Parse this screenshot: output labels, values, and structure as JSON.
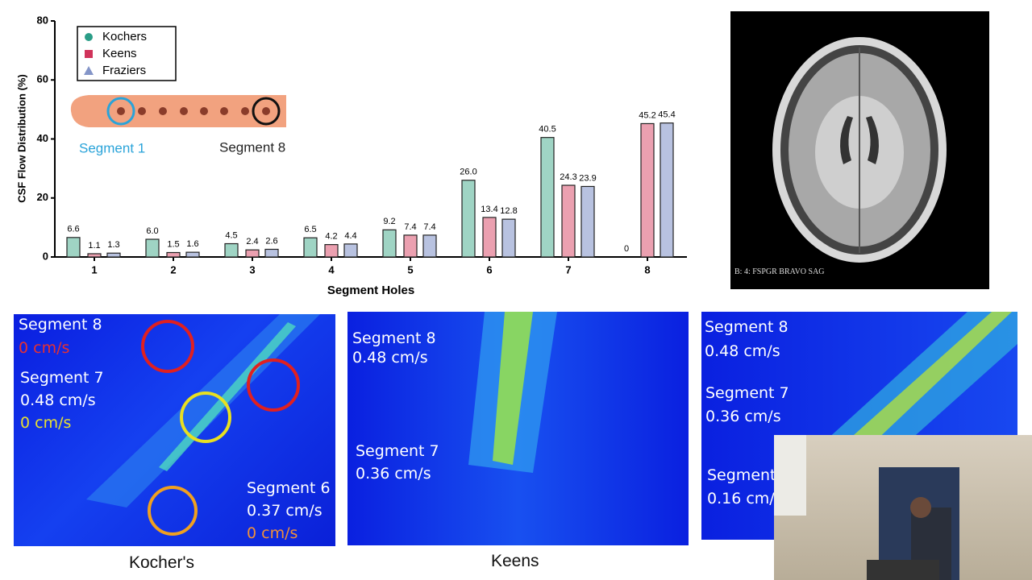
{
  "chart_data": {
    "type": "bar",
    "x_label": "Segment Holes",
    "y_label": "CSF Flow Distribution (%)",
    "categories": [
      "1",
      "2",
      "3",
      "4",
      "5",
      "6",
      "7",
      "8"
    ],
    "series": [
      {
        "name": "Kochers",
        "color": "#9fd4c4",
        "marker_color": "#2a9d87",
        "values": [
          6.6,
          6.0,
          4.5,
          6.5,
          9.2,
          26.0,
          40.5,
          0
        ],
        "value_labels": [
          "6.6",
          "6.0",
          "4.5",
          "6.5",
          "9.2",
          "26.0",
          "40.5",
          "0"
        ]
      },
      {
        "name": "Keens",
        "color": "#eba0b0",
        "marker_color": "#d0335a",
        "values": [
          1.1,
          1.5,
          2.4,
          4.2,
          7.4,
          13.4,
          24.3,
          45.2
        ],
        "value_labels": [
          "1.1",
          "1.5",
          "2.4",
          "4.2",
          "7.4",
          "13.4",
          "24.3",
          "45.2"
        ]
      },
      {
        "name": "Fraziers",
        "color": "#b8c2e0",
        "marker_color": "#8495c8",
        "values": [
          1.3,
          1.6,
          2.6,
          4.4,
          7.4,
          12.8,
          23.9,
          45.4
        ],
        "value_labels": [
          "1.3",
          "1.6",
          "2.6",
          "4.4",
          "7.4",
          "12.8",
          "23.9",
          "45.4"
        ]
      }
    ],
    "ylim": [
      0,
      80
    ],
    "yticks": [
      0,
      20,
      40,
      60,
      80
    ],
    "legend": "upper-left"
  },
  "illustration": {
    "labels": [
      "Segment 1",
      "Segment 8"
    ]
  },
  "mri": {
    "caption": "B: 4: FSPGR BRAVO SAG"
  },
  "panels": [
    {
      "caption": "Kocher's",
      "labels": [
        "Segment 8",
        "0 cm/s",
        "Segment 7",
        "0.48 cm/s",
        "0 cm/s",
        "Segment 6",
        "0.37 cm/s",
        "0 cm/s"
      ]
    },
    {
      "caption": "Keens",
      "labels": [
        "Segment 8",
        "0.48 cm/s",
        "Segment 7",
        "0.36 cm/s"
      ]
    },
    {
      "labels": [
        "Segment 8",
        "0.48 cm/s",
        "Segment 7",
        "0.36 cm/s",
        "Segment",
        "0.16 cm/"
      ]
    }
  ]
}
